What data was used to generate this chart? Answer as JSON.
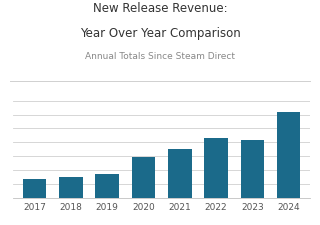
{
  "title_line1": "New Release Revenue:",
  "title_line2": "Year Over Year Comparison",
  "subtitle": "Annual Totals Since Steam Direct",
  "categories": [
    "2017",
    "2018",
    "2019",
    "2020",
    "2021",
    "2022",
    "2023",
    "2024"
  ],
  "values": [
    1.0,
    1.1,
    1.3,
    2.2,
    2.6,
    3.2,
    3.1,
    4.6
  ],
  "bar_color": "#1b6a8a",
  "background_color": "#ffffff",
  "title_fontsize": 8.5,
  "subtitle_fontsize": 6.5,
  "tick_fontsize": 6.5,
  "ylim": [
    0,
    5.2
  ],
  "n_gridlines": 7,
  "gridline_color": "#d0d0d0",
  "spine_color": "#c0c0c0"
}
